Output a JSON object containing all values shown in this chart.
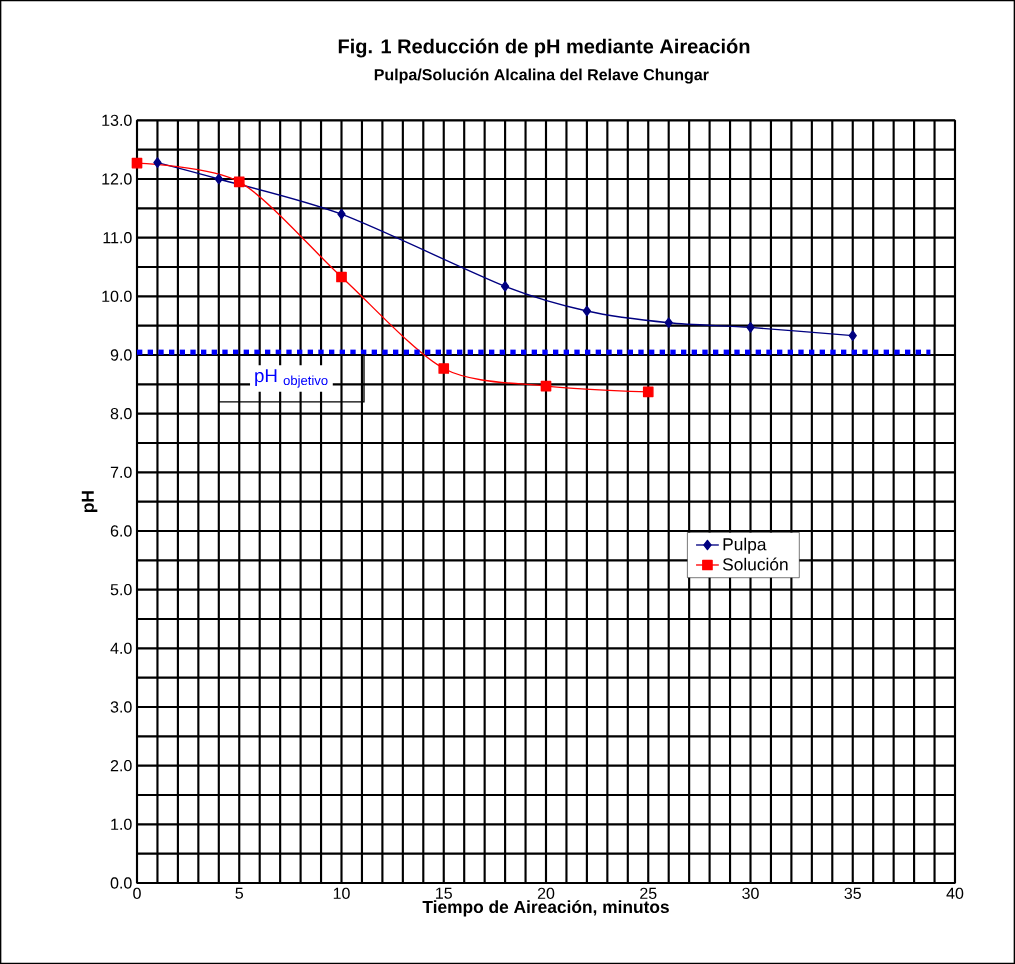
{
  "chart_data": {
    "type": "line",
    "title": "Fig. 1 Reducción de pH mediante Aireación",
    "subtitle": "Pulpa/Solución Alcalina del Relave Chungar",
    "xlabel": "Tiempo de Aireación, minutos",
    "ylabel": "pH",
    "series": [
      {
        "name": "Pulpa",
        "color": "#000080",
        "marker": "diamond",
        "x": [
          1,
          4,
          10,
          18,
          22,
          26,
          30,
          35
        ],
        "values": [
          12.28,
          12.0,
          11.4,
          10.17,
          9.75,
          9.55,
          9.47,
          9.33
        ]
      },
      {
        "name": "Solución",
        "color": "#ff0000",
        "marker": "square",
        "x": [
          0,
          5,
          10,
          15,
          20,
          25
        ],
        "values": [
          12.27,
          11.95,
          10.33,
          8.77,
          8.47,
          8.37
        ]
      }
    ],
    "xlim": [
      0,
      40
    ],
    "ylim": [
      0,
      13
    ],
    "xticks": [
      0,
      5,
      10,
      15,
      20,
      25,
      30,
      35,
      40
    ],
    "yticks": [
      {
        "value": 0,
        "label": "0.0"
      },
      {
        "value": 1,
        "label": "1.0"
      },
      {
        "value": 2,
        "label": "2.0"
      },
      {
        "value": 3,
        "label": "3.0"
      },
      {
        "value": 4,
        "label": "4.0"
      },
      {
        "value": 5,
        "label": "5.0"
      },
      {
        "value": 6,
        "label": "6.0"
      },
      {
        "value": 7,
        "label": "7.0"
      },
      {
        "value": 8,
        "label": "8.0"
      },
      {
        "value": 9,
        "label": "9.0"
      },
      {
        "value": 10,
        "label": "10.0"
      },
      {
        "value": 11,
        "label": "11.0"
      },
      {
        "value": 12,
        "label": "12.0"
      },
      {
        "value": 13,
        "label": "13.0"
      }
    ],
    "ref_lines": [
      {
        "axis": "y",
        "value": 9.05,
        "label": "pH $_{objetivo}$",
        "color": "#0000ff",
        "line_style": "dotted"
      }
    ],
    "grid": true,
    "legend": "right",
    "line_style": "solid"
  }
}
